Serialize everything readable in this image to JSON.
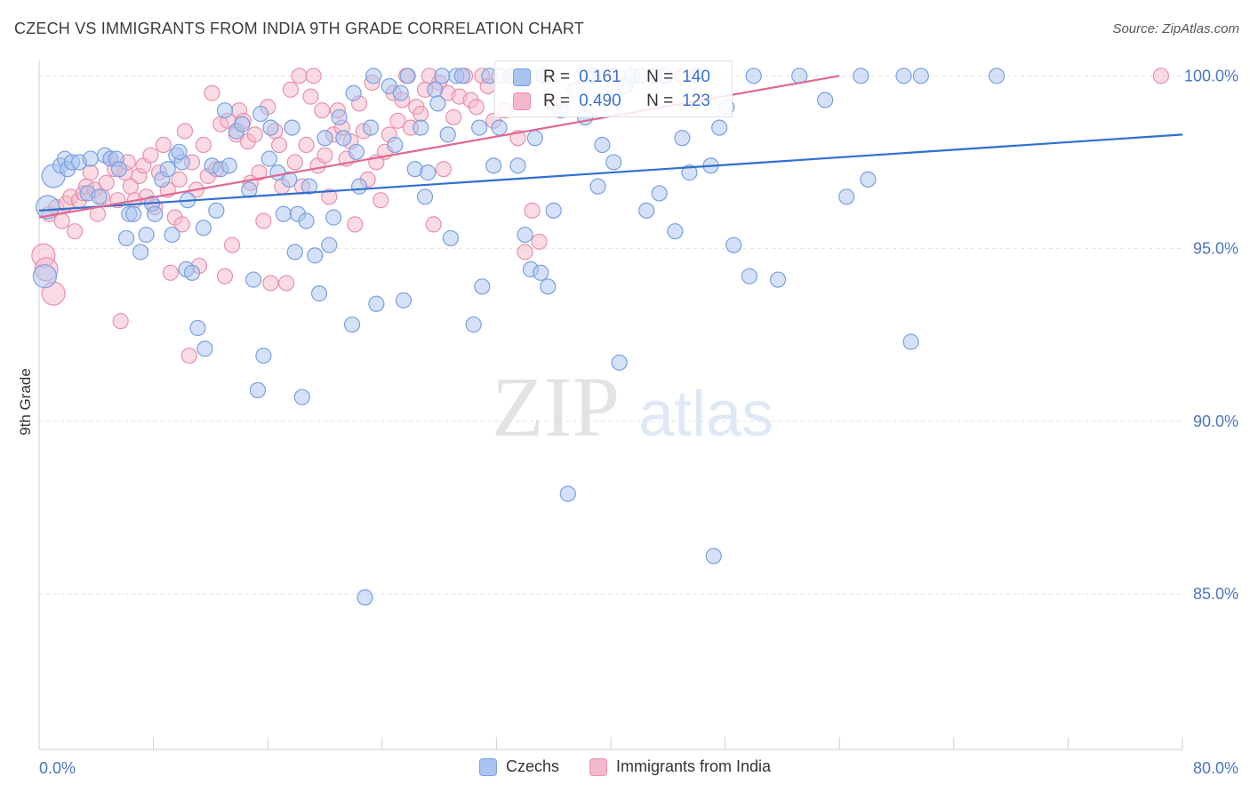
{
  "title": "CZECH VS IMMIGRANTS FROM INDIA 9TH GRADE CORRELATION CHART",
  "source": "Source: ZipAtlas.com",
  "watermark": {
    "zip": "ZIP",
    "atlas": "atlas"
  },
  "legend_top": {
    "r_label": "R =",
    "n_label": "N =",
    "rows": [
      {
        "r": "0.161",
        "n": "140",
        "color": "#a9c4f0",
        "border": "#7aa0e0"
      },
      {
        "r": "0.490",
        "n": "123",
        "color": "#f5b8ca",
        "border": "#e990aa"
      }
    ]
  },
  "legend_bottom": [
    {
      "label": "Czechs",
      "color": "#a9c4f0",
      "border": "#7aa0e0"
    },
    {
      "label": "Immigrants from India",
      "color": "#f5b8ca",
      "border": "#e990aa"
    }
  ],
  "chart_data": {
    "type": "scatter",
    "title": "CZECH VS IMMIGRANTS FROM INDIA 9TH GRADE CORRELATION CHART",
    "xlabel": "",
    "ylabel": "9th Grade",
    "xlim": [
      0,
      80
    ],
    "ylim": [
      80.5,
      100.6
    ],
    "x_tick_labels": [
      "0.0%",
      "80.0%"
    ],
    "y_ticks": [
      85,
      90,
      95,
      100
    ],
    "y_tick_labels": [
      "85.0%",
      "90.0%",
      "95.0%",
      "100.0%"
    ],
    "grid": true,
    "legend_placement": "top-center",
    "series": [
      {
        "name": "Czechs",
        "color": "#7aa0e0",
        "fill": "#a9c4f0",
        "trend": {
          "x": [
            0,
            80
          ],
          "y": [
            96.1,
            98.3
          ],
          "color": "#2f6fd0"
        },
        "points": [
          [
            1.0,
            97.1
          ],
          [
            1.5,
            97.4
          ],
          [
            1.8,
            97.6
          ],
          [
            2.0,
            97.3
          ],
          [
            2.3,
            97.5
          ],
          [
            2.8,
            97.5
          ],
          [
            3.4,
            96.6
          ],
          [
            3.6,
            97.6
          ],
          [
            4.2,
            96.5
          ],
          [
            4.6,
            97.7
          ],
          [
            5.0,
            97.6
          ],
          [
            5.4,
            97.6
          ],
          [
            5.6,
            97.3
          ],
          [
            6.1,
            95.3
          ],
          [
            6.3,
            96.0
          ],
          [
            6.6,
            96.0
          ],
          [
            7.1,
            94.9
          ],
          [
            7.5,
            95.4
          ],
          [
            7.9,
            96.3
          ],
          [
            8.1,
            96.0
          ],
          [
            8.6,
            97.0
          ],
          [
            9.0,
            97.3
          ],
          [
            9.3,
            95.4
          ],
          [
            9.6,
            97.7
          ],
          [
            10.0,
            97.5
          ],
          [
            10.3,
            94.4
          ],
          [
            10.4,
            96.4
          ],
          [
            10.7,
            94.3
          ],
          [
            11.1,
            92.7
          ],
          [
            11.5,
            95.6
          ],
          [
            11.6,
            92.1
          ],
          [
            12.1,
            97.4
          ],
          [
            12.4,
            96.1
          ],
          [
            12.7,
            97.3
          ],
          [
            13.3,
            97.4
          ],
          [
            13.8,
            98.4
          ],
          [
            14.2,
            98.6
          ],
          [
            14.7,
            96.7
          ],
          [
            15.0,
            94.1
          ],
          [
            15.3,
            90.9
          ],
          [
            15.5,
            98.9
          ],
          [
            15.7,
            91.9
          ],
          [
            16.1,
            97.6
          ],
          [
            16.2,
            98.5
          ],
          [
            16.7,
            97.2
          ],
          [
            17.1,
            96.0
          ],
          [
            17.7,
            98.5
          ],
          [
            17.9,
            94.9
          ],
          [
            18.1,
            96.0
          ],
          [
            18.4,
            90.7
          ],
          [
            18.7,
            95.8
          ],
          [
            18.9,
            96.8
          ],
          [
            19.3,
            94.8
          ],
          [
            19.6,
            93.7
          ],
          [
            20.0,
            98.2
          ],
          [
            20.3,
            95.1
          ],
          [
            20.6,
            95.9
          ],
          [
            21.0,
            98.8
          ],
          [
            21.3,
            98.2
          ],
          [
            21.9,
            92.8
          ],
          [
            22.2,
            97.8
          ],
          [
            22.4,
            96.8
          ],
          [
            22.8,
            84.9
          ],
          [
            23.2,
            98.5
          ],
          [
            23.4,
            100.0
          ],
          [
            23.6,
            93.4
          ],
          [
            24.5,
            99.7
          ],
          [
            24.9,
            98.0
          ],
          [
            25.3,
            99.5
          ],
          [
            25.5,
            93.5
          ],
          [
            25.8,
            100.0
          ],
          [
            26.3,
            97.3
          ],
          [
            26.7,
            98.5
          ],
          [
            27.2,
            97.2
          ],
          [
            27.7,
            99.6
          ],
          [
            27.9,
            99.2
          ],
          [
            28.2,
            100.0
          ],
          [
            28.6,
            98.3
          ],
          [
            28.8,
            95.3
          ],
          [
            29.2,
            100.0
          ],
          [
            29.6,
            100.0
          ],
          [
            30.4,
            92.8
          ],
          [
            30.8,
            98.5
          ],
          [
            31.0,
            93.9
          ],
          [
            31.5,
            100.0
          ],
          [
            31.8,
            97.4
          ],
          [
            32.2,
            98.5
          ],
          [
            33.0,
            100.0
          ],
          [
            33.5,
            97.4
          ],
          [
            34.0,
            95.4
          ],
          [
            34.4,
            94.4
          ],
          [
            34.7,
            98.2
          ],
          [
            35.1,
            94.3
          ],
          [
            35.6,
            93.9
          ],
          [
            36.0,
            96.1
          ],
          [
            36.5,
            99.0
          ],
          [
            37.0,
            87.9
          ],
          [
            37.5,
            99.6
          ],
          [
            38.2,
            98.8
          ],
          [
            38.7,
            100.0
          ],
          [
            39.1,
            96.8
          ],
          [
            39.4,
            98.0
          ],
          [
            40.2,
            97.5
          ],
          [
            40.6,
            91.7
          ],
          [
            41.0,
            99.7
          ],
          [
            41.5,
            100.0
          ],
          [
            42.1,
            100.0
          ],
          [
            42.5,
            96.1
          ],
          [
            43.0,
            100.0
          ],
          [
            43.4,
            96.6
          ],
          [
            43.8,
            100.0
          ],
          [
            44.5,
            95.5
          ],
          [
            45.0,
            98.2
          ],
          [
            45.5,
            97.2
          ],
          [
            46.0,
            100.0
          ],
          [
            47.2,
            86.1
          ],
          [
            47.6,
            98.5
          ],
          [
            48.1,
            99.1
          ],
          [
            48.6,
            95.1
          ],
          [
            49.7,
            94.2
          ],
          [
            50.0,
            100.0
          ],
          [
            51.7,
            94.1
          ],
          [
            53.2,
            100.0
          ],
          [
            55.0,
            99.3
          ],
          [
            56.5,
            96.5
          ],
          [
            57.5,
            100.0
          ],
          [
            60.5,
            100.0
          ],
          [
            61.0,
            92.3
          ],
          [
            61.7,
            100.0
          ],
          [
            67.0,
            100.0
          ],
          [
            0.6,
            96.2
          ],
          [
            0.4,
            94.2
          ],
          [
            9.8,
            97.8
          ],
          [
            22.0,
            99.5
          ],
          [
            13.0,
            99.0
          ],
          [
            17.5,
            97.0
          ],
          [
            27.0,
            96.5
          ],
          [
            47.0,
            97.4
          ],
          [
            35.3,
            100.0
          ],
          [
            58.0,
            97.0
          ]
        ]
      },
      {
        "name": "Immigrants from India",
        "color": "#e990aa",
        "fill": "#f5b8ca",
        "trend": {
          "x": [
            0,
            56
          ],
          "y": [
            95.9,
            100.0
          ],
          "color": "#e06890"
        },
        "points": [
          [
            0.3,
            94.8
          ],
          [
            0.5,
            94.4
          ],
          [
            0.7,
            96.0
          ],
          [
            1.0,
            93.7
          ],
          [
            1.2,
            96.2
          ],
          [
            1.6,
            95.8
          ],
          [
            1.9,
            96.3
          ],
          [
            2.2,
            96.5
          ],
          [
            2.5,
            95.5
          ],
          [
            2.8,
            96.4
          ],
          [
            3.1,
            96.6
          ],
          [
            3.3,
            96.8
          ],
          [
            3.6,
            97.2
          ],
          [
            3.9,
            96.7
          ],
          [
            4.1,
            96.0
          ],
          [
            4.4,
            96.5
          ],
          [
            4.7,
            96.9
          ],
          [
            5.0,
            97.6
          ],
          [
            5.3,
            97.3
          ],
          [
            5.5,
            96.4
          ],
          [
            5.7,
            92.9
          ],
          [
            6.0,
            97.2
          ],
          [
            6.4,
            96.8
          ],
          [
            6.7,
            96.4
          ],
          [
            7.0,
            97.1
          ],
          [
            7.3,
            97.4
          ],
          [
            7.5,
            96.5
          ],
          [
            7.8,
            97.7
          ],
          [
            8.1,
            96.2
          ],
          [
            8.4,
            97.2
          ],
          [
            8.7,
            98.0
          ],
          [
            9.0,
            96.7
          ],
          [
            9.2,
            94.3
          ],
          [
            9.5,
            95.9
          ],
          [
            9.8,
            97.0
          ],
          [
            10.0,
            95.7
          ],
          [
            10.2,
            98.4
          ],
          [
            10.5,
            91.9
          ],
          [
            10.7,
            97.5
          ],
          [
            11.0,
            96.7
          ],
          [
            11.2,
            94.5
          ],
          [
            11.5,
            98.0
          ],
          [
            11.8,
            97.1
          ],
          [
            12.1,
            99.5
          ],
          [
            12.4,
            97.3
          ],
          [
            12.7,
            98.6
          ],
          [
            13.0,
            94.2
          ],
          [
            13.2,
            98.7
          ],
          [
            13.5,
            95.1
          ],
          [
            13.8,
            98.3
          ],
          [
            14.0,
            99.0
          ],
          [
            14.3,
            98.7
          ],
          [
            14.6,
            98.1
          ],
          [
            14.8,
            96.9
          ],
          [
            15.1,
            98.3
          ],
          [
            15.4,
            97.2
          ],
          [
            15.7,
            95.8
          ],
          [
            16.0,
            99.1
          ],
          [
            16.2,
            94.0
          ],
          [
            16.5,
            98.4
          ],
          [
            16.8,
            98.0
          ],
          [
            17.0,
            96.8
          ],
          [
            17.3,
            94.0
          ],
          [
            17.6,
            99.6
          ],
          [
            17.9,
            97.5
          ],
          [
            18.2,
            100.0
          ],
          [
            18.4,
            96.8
          ],
          [
            18.7,
            98.0
          ],
          [
            19.0,
            99.4
          ],
          [
            19.2,
            100.0
          ],
          [
            19.5,
            97.4
          ],
          [
            19.8,
            99.0
          ],
          [
            20.0,
            97.7
          ],
          [
            20.3,
            96.5
          ],
          [
            20.6,
            98.3
          ],
          [
            20.9,
            99.0
          ],
          [
            21.2,
            98.5
          ],
          [
            21.5,
            97.6
          ],
          [
            21.8,
            98.1
          ],
          [
            22.1,
            95.7
          ],
          [
            22.4,
            99.2
          ],
          [
            22.7,
            98.4
          ],
          [
            23.0,
            97.0
          ],
          [
            23.3,
            99.8
          ],
          [
            23.6,
            97.5
          ],
          [
            23.9,
            96.4
          ],
          [
            24.2,
            97.8
          ],
          [
            24.5,
            98.3
          ],
          [
            24.8,
            99.5
          ],
          [
            25.1,
            98.7
          ],
          [
            25.4,
            99.3
          ],
          [
            25.7,
            100.0
          ],
          [
            26.0,
            98.5
          ],
          [
            26.4,
            99.1
          ],
          [
            26.7,
            98.9
          ],
          [
            27.0,
            99.6
          ],
          [
            27.3,
            100.0
          ],
          [
            27.6,
            95.7
          ],
          [
            28.0,
            99.8
          ],
          [
            28.3,
            97.3
          ],
          [
            28.6,
            99.5
          ],
          [
            29.0,
            98.8
          ],
          [
            29.4,
            99.4
          ],
          [
            29.8,
            100.0
          ],
          [
            30.2,
            99.3
          ],
          [
            30.6,
            99.1
          ],
          [
            31.0,
            100.0
          ],
          [
            31.4,
            99.7
          ],
          [
            31.8,
            98.7
          ],
          [
            32.2,
            100.0
          ],
          [
            32.6,
            99.0
          ],
          [
            33.0,
            100.0
          ],
          [
            33.5,
            98.2
          ],
          [
            34.0,
            94.9
          ],
          [
            34.5,
            96.1
          ],
          [
            35.0,
            95.2
          ],
          [
            35.5,
            100.0
          ],
          [
            36.0,
            99.2
          ],
          [
            38.0,
            100.0
          ],
          [
            40.0,
            100.0
          ],
          [
            45.0,
            100.0
          ],
          [
            78.5,
            100.0
          ],
          [
            6.2,
            97.5
          ]
        ]
      }
    ]
  }
}
